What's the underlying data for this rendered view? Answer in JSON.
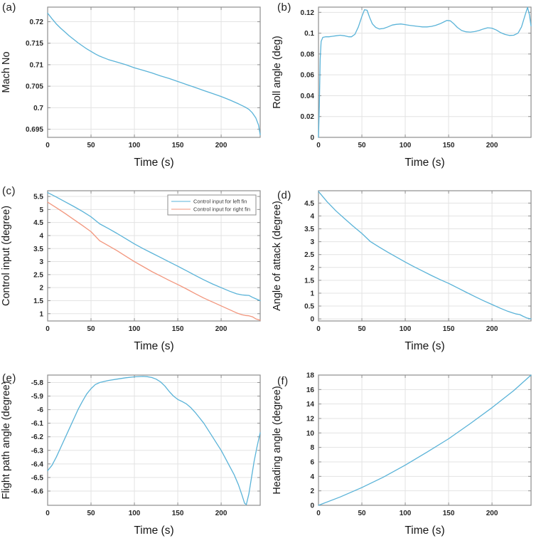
{
  "figure": {
    "background": "#ffffff",
    "columns": 2,
    "rows": 3
  },
  "styles": {
    "line_blue": "#5ab3d8",
    "line_red": "#f2967d",
    "grid_color": "#e3e3e3",
    "box_color": "#8e8e8e",
    "tick_label_color": "#262626",
    "axis_label_color": "#161616",
    "legend_border_color": "#8e8e8e",
    "legend_text_color": "#3a3a3a"
  },
  "chart_data": [
    {
      "panel_label": "(a)",
      "type": "line",
      "xlabel": "Time (s)",
      "ylabel": "Mach No",
      "xlim": [
        0,
        245
      ],
      "ylim": [
        0.6931,
        0.7234
      ],
      "xticks": [
        0,
        50,
        100,
        150,
        200
      ],
      "yticks": [
        0.695,
        0.7,
        0.705,
        0.71,
        0.715,
        0.72
      ],
      "ytick_labels": [
        "0.695",
        "0.7",
        "0.705",
        "0.71",
        "0.715",
        "0.72"
      ],
      "grid": true,
      "legend": false,
      "series": [
        {
          "name": "Mach No",
          "color": "#5ab3d8",
          "x": [
            0,
            5,
            10,
            15,
            20,
            25,
            30,
            35,
            40,
            45,
            50,
            55,
            60,
            65,
            70,
            75,
            80,
            90,
            100,
            110,
            120,
            130,
            140,
            150,
            160,
            170,
            180,
            190,
            200,
            210,
            220,
            228,
            232,
            236,
            240,
            243,
            245
          ],
          "y": [
            0.722,
            0.7207,
            0.7195,
            0.7185,
            0.7176,
            0.7167,
            0.7159,
            0.7151,
            0.7144,
            0.7137,
            0.7131,
            0.7125,
            0.712,
            0.7116,
            0.7112,
            0.7109,
            0.7106,
            0.71,
            0.7093,
            0.7087,
            0.7081,
            0.7074,
            0.7068,
            0.7061,
            0.7054,
            0.7047,
            0.704,
            0.7033,
            0.7026,
            0.7018,
            0.7009,
            0.7001,
            0.6996,
            0.6988,
            0.6976,
            0.696,
            0.6937
          ]
        }
      ]
    },
    {
      "panel_label": "(b)",
      "type": "line",
      "xlabel": "Time (s)",
      "ylabel": "Roll angle (deg)",
      "xlim": [
        0,
        245
      ],
      "ylim": [
        0,
        0.125
      ],
      "xticks": [
        0,
        50,
        100,
        150,
        200
      ],
      "yticks": [
        0,
        0.02,
        0.04,
        0.06,
        0.08,
        0.1,
        0.12
      ],
      "ytick_labels": [
        "0",
        "0.02",
        "0.04",
        "0.06",
        "0.08",
        "0.1",
        "0.12"
      ],
      "grid": true,
      "legend": false,
      "series": [
        {
          "name": "Roll angle",
          "color": "#5ab3d8",
          "x": [
            0,
            1,
            2,
            3,
            5,
            8,
            12,
            16,
            20,
            25,
            30,
            35,
            38,
            42,
            46,
            50,
            53,
            56,
            59,
            62,
            66,
            70,
            75,
            80,
            85,
            90,
            95,
            100,
            105,
            110,
            115,
            120,
            125,
            130,
            135,
            140,
            145,
            148,
            152,
            156,
            160,
            165,
            170,
            175,
            180,
            185,
            190,
            195,
            200,
            205,
            210,
            215,
            220,
            225,
            230,
            234,
            238,
            241,
            243,
            245
          ],
          "y": [
            0,
            0.03,
            0.075,
            0.092,
            0.096,
            0.0965,
            0.0965,
            0.097,
            0.0975,
            0.098,
            0.0975,
            0.0965,
            0.0965,
            0.099,
            0.106,
            0.116,
            0.1225,
            0.122,
            0.115,
            0.109,
            0.1055,
            0.104,
            0.1045,
            0.106,
            0.1078,
            0.1085,
            0.1088,
            0.1082,
            0.1075,
            0.107,
            0.1065,
            0.106,
            0.106,
            0.1065,
            0.1075,
            0.109,
            0.111,
            0.1122,
            0.1118,
            0.109,
            0.1055,
            0.1025,
            0.1013,
            0.101,
            0.1015,
            0.1025,
            0.104,
            0.1052,
            0.1048,
            0.103,
            0.1005,
            0.0988,
            0.0978,
            0.098,
            0.1,
            0.106,
            0.117,
            0.1248,
            0.118,
            0.107
          ]
        }
      ]
    },
    {
      "panel_label": "(c)",
      "type": "line",
      "xlabel": "Time (s)",
      "ylabel": "Control input (degree)",
      "xlim": [
        0,
        245
      ],
      "ylim": [
        0.72,
        5.72
      ],
      "xticks": [
        0,
        50,
        100,
        150,
        200
      ],
      "yticks": [
        1,
        1.5,
        2,
        2.5,
        3,
        3.5,
        4,
        4.5,
        5,
        5.5
      ],
      "ytick_labels": [
        "1",
        "1.5",
        "2",
        "2.5",
        "3",
        "3.5",
        "4",
        "4.5",
        "5",
        "5.5"
      ],
      "grid": true,
      "legend": true,
      "series": [
        {
          "name": "Control input for left fin",
          "color": "#5ab3d8",
          "x": [
            0,
            10,
            20,
            30,
            40,
            50,
            60,
            70,
            80,
            90,
            100,
            110,
            120,
            130,
            140,
            150,
            160,
            170,
            180,
            190,
            200,
            210,
            218,
            224,
            228,
            232,
            236,
            240,
            245
          ],
          "y": [
            5.65,
            5.48,
            5.3,
            5.12,
            4.93,
            4.72,
            4.45,
            4.27,
            4.08,
            3.88,
            3.68,
            3.5,
            3.33,
            3.16,
            2.99,
            2.82,
            2.65,
            2.47,
            2.3,
            2.14,
            2.0,
            1.86,
            1.76,
            1.72,
            1.71,
            1.7,
            1.63,
            1.57,
            1.5
          ]
        },
        {
          "name": "Control input for right fin",
          "color": "#f2967d",
          "x": [
            0,
            10,
            20,
            30,
            40,
            50,
            60,
            70,
            80,
            90,
            100,
            110,
            120,
            130,
            140,
            150,
            160,
            170,
            180,
            190,
            200,
            210,
            218,
            224,
            228,
            232,
            236,
            240,
            245
          ],
          "y": [
            5.28,
            5.07,
            4.85,
            4.62,
            4.39,
            4.15,
            3.8,
            3.61,
            3.42,
            3.21,
            3.0,
            2.81,
            2.62,
            2.45,
            2.28,
            2.12,
            1.95,
            1.77,
            1.6,
            1.45,
            1.3,
            1.15,
            1.03,
            0.96,
            0.93,
            0.92,
            0.88,
            0.8,
            0.75
          ]
        }
      ]
    },
    {
      "panel_label": "(d)",
      "type": "line",
      "xlabel": "Time (s)",
      "ylabel": "Angle of attack (degree)",
      "xlim": [
        0,
        245
      ],
      "ylim": [
        -0.08,
        4.98
      ],
      "xticks": [
        0,
        50,
        100,
        150,
        200
      ],
      "yticks": [
        0,
        0.5,
        1,
        1.5,
        2,
        2.5,
        3,
        3.5,
        4,
        4.5
      ],
      "ytick_labels": [
        "0",
        "0.5",
        "1",
        "1.5",
        "2",
        "2.5",
        "3",
        "3.5",
        "4",
        "4.5"
      ],
      "grid": true,
      "legend": false,
      "series": [
        {
          "name": "Angle of attack",
          "color": "#5ab3d8",
          "x": [
            0,
            10,
            20,
            30,
            40,
            50,
            60,
            70,
            80,
            90,
            100,
            110,
            120,
            130,
            140,
            150,
            160,
            170,
            180,
            190,
            200,
            210,
            218,
            224,
            228,
            232,
            236,
            240,
            245
          ],
          "y": [
            4.95,
            4.55,
            4.2,
            3.9,
            3.6,
            3.32,
            3.0,
            2.79,
            2.59,
            2.4,
            2.21,
            2.03,
            1.86,
            1.69,
            1.53,
            1.38,
            1.21,
            1.04,
            0.87,
            0.71,
            0.56,
            0.41,
            0.3,
            0.23,
            0.19,
            0.17,
            0.1,
            0.04,
            0.0
          ]
        }
      ]
    },
    {
      "panel_label": "(e)",
      "type": "line",
      "xlabel": "Time (s)",
      "ylabel": "Flight path angle (degree)",
      "xlim": [
        0,
        245
      ],
      "ylim": [
        -6.705,
        -5.745
      ],
      "xticks": [
        0,
        50,
        100,
        150,
        200
      ],
      "yticks": [
        -6.6,
        -6.5,
        -6.4,
        -6.3,
        -6.2,
        -6.1,
        -6,
        -5.9,
        -5.8
      ],
      "ytick_labels": [
        "-6.6",
        "-6.5",
        "-6.4",
        "-6.3",
        "-6.2",
        "-6.1",
        "-6",
        "-5.9",
        "-5.8"
      ],
      "grid": true,
      "legend": false,
      "series": [
        {
          "name": "Flight path angle",
          "color": "#5ab3d8",
          "x": [
            0,
            5,
            10,
            15,
            20,
            25,
            30,
            35,
            40,
            45,
            50,
            55,
            60,
            70,
            80,
            90,
            100,
            110,
            115,
            120,
            125,
            130,
            135,
            140,
            145,
            150,
            155,
            160,
            165,
            170,
            175,
            180,
            185,
            190,
            195,
            200,
            205,
            210,
            215,
            220,
            224,
            227,
            229,
            232,
            235,
            238,
            241,
            243,
            245
          ],
          "y": [
            -6.45,
            -6.41,
            -6.35,
            -6.28,
            -6.21,
            -6.14,
            -6.07,
            -6.0,
            -5.94,
            -5.885,
            -5.845,
            -5.815,
            -5.8,
            -5.785,
            -5.775,
            -5.765,
            -5.758,
            -5.755,
            -5.757,
            -5.763,
            -5.775,
            -5.795,
            -5.825,
            -5.865,
            -5.9,
            -5.925,
            -5.94,
            -5.958,
            -5.985,
            -6.02,
            -6.06,
            -6.1,
            -6.15,
            -6.2,
            -6.25,
            -6.3,
            -6.36,
            -6.42,
            -6.48,
            -6.555,
            -6.63,
            -6.69,
            -6.7,
            -6.62,
            -6.5,
            -6.38,
            -6.285,
            -6.225,
            -6.17
          ]
        }
      ]
    },
    {
      "panel_label": "(f)",
      "type": "line",
      "xlabel": "Time (s)",
      "ylabel": "Heading angle (degree)",
      "xlim": [
        0,
        245
      ],
      "ylim": [
        0,
        18
      ],
      "xticks": [
        0,
        50,
        100,
        150,
        200
      ],
      "yticks": [
        0,
        2,
        4,
        6,
        8,
        10,
        12,
        14,
        16,
        18
      ],
      "ytick_labels": [
        "0",
        "2",
        "4",
        "6",
        "8",
        "10",
        "12",
        "14",
        "16",
        "18"
      ],
      "grid": true,
      "legend": false,
      "series": [
        {
          "name": "Heading angle",
          "color": "#5ab3d8",
          "x": [
            0,
            25,
            50,
            75,
            100,
            125,
            150,
            175,
            200,
            225,
            245
          ],
          "y": [
            0,
            1.15,
            2.45,
            3.9,
            5.55,
            7.35,
            9.2,
            11.3,
            13.5,
            15.85,
            18.0
          ]
        }
      ]
    }
  ]
}
